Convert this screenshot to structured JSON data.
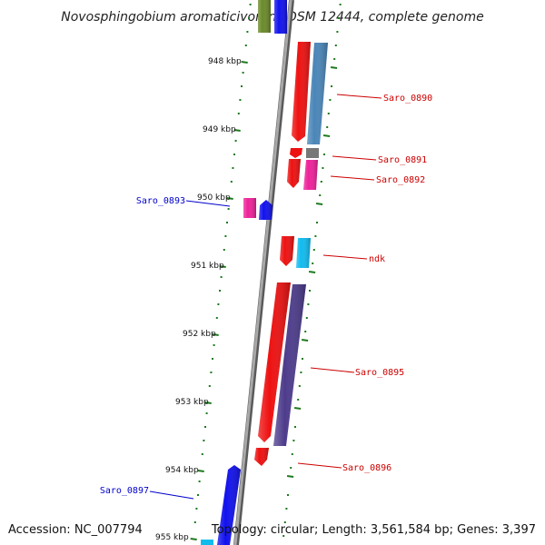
{
  "title": "Novosphingobium aromaticivorans DSM 12444, complete genome",
  "footer": {
    "accession": "Accession: NC_007794",
    "topology": "Topology: circular; Length: 3,561,584 bp; Genes: 3,397"
  },
  "scale_labels": [
    "948 kbp",
    "949 kbp",
    "950 kbp",
    "951 kbp",
    "952 kbp",
    "953 kbp",
    "954 kbp",
    "955 kbp"
  ],
  "colors": {
    "backbone": "#8a8a8a",
    "tick": "#1f7a1f",
    "label_red": "#cc0000",
    "label_blue": "#0000cc",
    "gene_red": "#ee1111",
    "gene_blue": "#1111ee",
    "gene_pink": "#ee2299",
    "gene_cyan": "#11bbee",
    "gene_steel": "#4a86b8",
    "gene_purple": "#4d3c8c",
    "gene_olive": "#6b8a2a",
    "gene_gray": "#777777"
  },
  "gene_labels": {
    "saro_0890": "Saro_0890",
    "saro_0891": "Saro_0891",
    "saro_0892": "Saro_0892",
    "saro_0893": "Saro_0893",
    "ndk": "ndk",
    "saro_0895": "Saro_0895",
    "saro_0896": "Saro_0896",
    "saro_0897": "Saro_0897"
  }
}
